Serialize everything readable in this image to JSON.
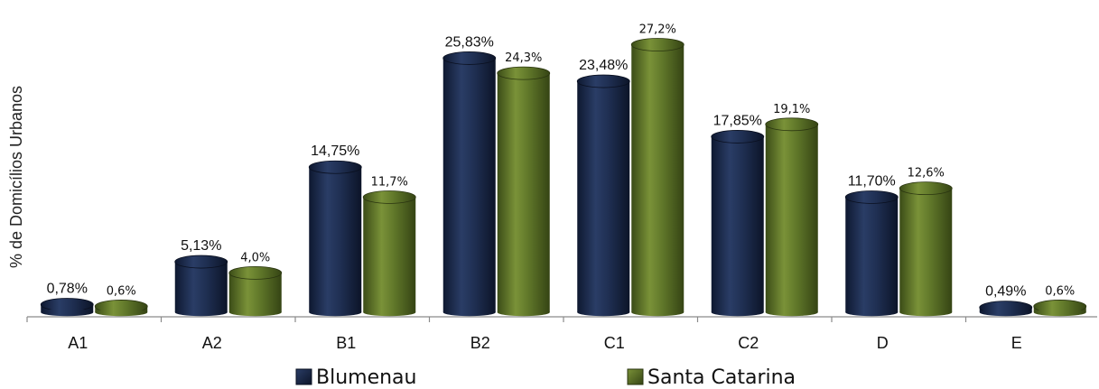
{
  "chart_data": {
    "type": "bar",
    "ylabel": "% de Domicílios Urbanos",
    "categories": [
      "A1",
      "A2",
      "B1",
      "B2",
      "C1",
      "C2",
      "D",
      "E"
    ],
    "series": [
      {
        "name": "Blumenau",
        "color": "#1c2c4f",
        "values": [
          0.78,
          5.13,
          14.75,
          25.83,
          23.48,
          17.85,
          11.7,
          0.49
        ],
        "labels": [
          "0,78%",
          "5,13%",
          "14,75%",
          "25,83%",
          "23,48%",
          "17,85%",
          "11,70%",
          "0,49%"
        ]
      },
      {
        "name": "Santa Catarina",
        "color": "#5b7128",
        "values": [
          0.6,
          4.0,
          11.7,
          24.3,
          27.2,
          19.1,
          12.6,
          0.6
        ],
        "labels": [
          "0,6%",
          "4,0%",
          "11,7%",
          "24,3%",
          "27,2%",
          "19,1%",
          "12,6%",
          "0,6%"
        ]
      }
    ],
    "grid": false,
    "legend": "bottom"
  }
}
